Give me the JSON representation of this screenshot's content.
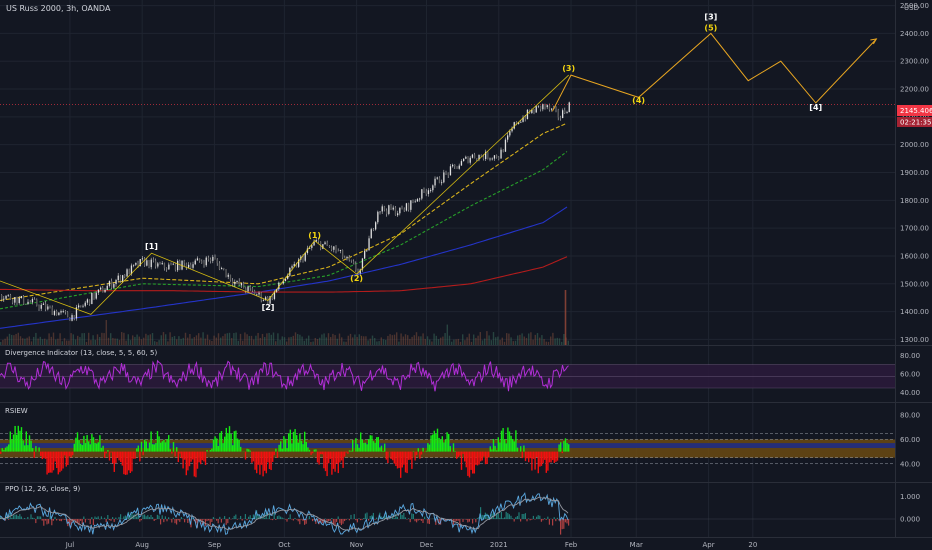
{
  "header": {
    "title": "US Russ 2000, 3h, OANDA",
    "currency": "USD"
  },
  "colors": {
    "background": "#131722",
    "grid": "#1f2430",
    "axis_text": "#b2b5be",
    "price_tag": "#f23645",
    "wave": "#f5d60f",
    "price_line": "#d1d4dc",
    "ma_fast": "#d8b21c",
    "ma_mid": "#27a02a",
    "ma_slow": "#2434c9",
    "ma_long": "#b21c1c",
    "divergence": "#b12fd6",
    "rsiew_up": "#14e914",
    "rsiew_down": "#f01010",
    "ppo_line": "#5aa8e0",
    "ppo_signal": "#9598a1"
  },
  "price_tags": {
    "last_price": "2145.406",
    "countdown": "02:21:35"
  },
  "chart_data": [
    {
      "type": "line",
      "panel": "main",
      "title": "US Russ 2000, 3h, OANDA",
      "ylim": [
        1280,
        2520
      ],
      "y_ticks": [
        "2500.00",
        "2400.00",
        "2300.00",
        "2200.00",
        "2100.00",
        "2000.00",
        "1900.00",
        "1800.00",
        "1700.00",
        "1600.00",
        "1500.00",
        "1400.00",
        "1300.00"
      ],
      "y_tick_values": [
        2500,
        2400,
        2300,
        2200,
        2100,
        2000,
        1900,
        1800,
        1700,
        1600,
        1500,
        1400,
        1300
      ],
      "x_ticks": [
        "Jul",
        "Aug",
        "Sep",
        "Oct",
        "Nov",
        "Dec",
        "2021",
        "Feb",
        "Mar",
        "Apr",
        "20"
      ],
      "x_tick_dates": [
        "2020-07-01",
        "2020-08-01",
        "2020-09-01",
        "2020-10-01",
        "2020-11-01",
        "2020-12-01",
        "2021-01-01",
        "2021-02-01",
        "2021-03-01",
        "2021-04-01",
        "2021-04-20"
      ],
      "series": [
        {
          "kind": "price",
          "x": [
            "2020-06-01",
            "2020-06-15",
            "2020-07-01",
            "2020-07-10",
            "2020-07-20",
            "2020-08-01",
            "2020-08-10",
            "2020-08-20",
            "2020-08-31",
            "2020-09-10",
            "2020-09-24",
            "2020-10-01",
            "2020-10-14",
            "2020-10-23",
            "2020-11-02",
            "2020-11-10",
            "2020-11-20",
            "2020-12-01",
            "2020-12-10",
            "2020-12-20",
            "2021-01-01",
            "2021-01-08",
            "2021-01-15",
            "2021-01-20",
            "2021-01-27",
            "2021-01-31"
          ],
          "y": [
            1460,
            1430,
            1380,
            1450,
            1510,
            1580,
            1560,
            1570,
            1590,
            1500,
            1440,
            1520,
            1650,
            1620,
            1540,
            1770,
            1760,
            1840,
            1900,
            1960,
            1960,
            2080,
            2120,
            2140,
            2100,
            2145
          ]
        },
        {
          "kind": "ma_fast",
          "x": [
            "2020-06-01",
            "2020-08-01",
            "2020-09-20",
            "2020-10-20",
            "2020-11-20",
            "2020-12-20",
            "2021-01-20",
            "2021-01-31"
          ],
          "y": [
            1440,
            1520,
            1500,
            1560,
            1680,
            1860,
            2040,
            2080
          ]
        },
        {
          "kind": "ma_mid",
          "x": [
            "2020-06-01",
            "2020-08-01",
            "2020-09-20",
            "2020-10-20",
            "2020-11-20",
            "2020-12-20",
            "2021-01-20",
            "2021-01-31"
          ],
          "y": [
            1410,
            1500,
            1490,
            1530,
            1640,
            1780,
            1910,
            1980
          ]
        },
        {
          "kind": "ma_slow",
          "x": [
            "2020-06-01",
            "2020-08-01",
            "2020-09-20",
            "2020-10-20",
            "2020-11-20",
            "2020-12-20",
            "2021-01-20",
            "2021-01-31"
          ],
          "y": [
            1340,
            1410,
            1470,
            1510,
            1570,
            1640,
            1720,
            1780
          ]
        },
        {
          "kind": "ma_long",
          "x": [
            "2020-06-01",
            "2020-07-10",
            "2020-08-15",
            "2020-09-20",
            "2020-10-20",
            "2020-11-20",
            "2020-12-20",
            "2021-01-20",
            "2021-01-31"
          ],
          "y": [
            1480,
            1475,
            1475,
            1470,
            1470,
            1475,
            1500,
            1560,
            1600
          ]
        },
        {
          "kind": "wave_projection",
          "x": [
            "2021-01-24",
            "2021-02-01",
            "2021-03-02",
            "2021-04-02",
            "2021-04-18",
            "2021-05-02",
            "2021-05-17",
            "2021-06-12"
          ],
          "y": [
            2120,
            2250,
            2170,
            2400,
            2230,
            2300,
            2150,
            2380
          ]
        }
      ],
      "annotations": [
        {
          "label": "[1]",
          "x": "2020-08-05",
          "y": 1625,
          "color": "white"
        },
        {
          "label": "[2]",
          "x": "2020-09-24",
          "y": 1405,
          "color": "white"
        },
        {
          "label": "(1)",
          "x": "2020-10-14",
          "y": 1665,
          "color": "yellow"
        },
        {
          "label": "(2)",
          "x": "2020-11-01",
          "y": 1510,
          "color": "yellow"
        },
        {
          "label": "(3)",
          "x": "2021-01-31",
          "y": 2265,
          "color": "yellow"
        },
        {
          "label": "(4)",
          "x": "2021-03-02",
          "y": 2150,
          "color": "yellow"
        },
        {
          "label": "[3]",
          "x": "2021-04-02",
          "y": 2450,
          "color": "white"
        },
        {
          "label": "(5)",
          "x": "2021-04-02",
          "y": 2410,
          "color": "yellow"
        },
        {
          "label": "[4]",
          "x": "2021-05-17",
          "y": 2125,
          "color": "white"
        }
      ]
    },
    {
      "type": "line",
      "panel": "divergence",
      "title": "Divergence Indicator (13, close, 5, 5, 60, 5)",
      "ylim": [
        30,
        90
      ],
      "y_ticks": [
        "80.00",
        "60.00",
        "40.00"
      ],
      "y_tick_values": [
        80,
        60,
        40
      ],
      "band": [
        45,
        70
      ],
      "oscillation": {
        "center": 58,
        "amplitude": 14
      }
    },
    {
      "type": "area",
      "panel": "rsiew",
      "title": "RSIEW",
      "ylim": [
        25,
        90
      ],
      "y_ticks": [
        "80.00",
        "60.00",
        "40.00"
      ],
      "y_tick_values": [
        80,
        60,
        40
      ],
      "center": 50,
      "zones": [
        {
          "from": 45,
          "to": 60,
          "color": "orange"
        },
        {
          "from": 53,
          "to": 57,
          "color": "blue"
        }
      ]
    },
    {
      "type": "line",
      "panel": "ppo",
      "title": "PPO (12, 26, close, 9)",
      "ylim": [
        -0.8,
        1.6
      ],
      "y_ticks": [
        "1.000",
        "0.000"
      ],
      "y_tick_values": [
        1,
        0
      ]
    }
  ]
}
